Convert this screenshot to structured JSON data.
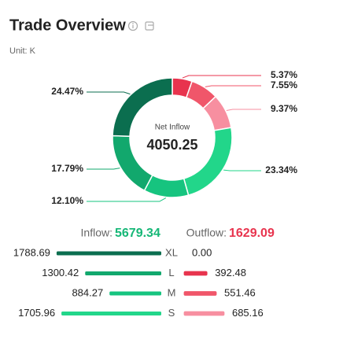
{
  "header": {
    "title": "Trade Overview",
    "unit": "Unit: K"
  },
  "chart_data": [
    {
      "type": "donut",
      "values": [
        5.37,
        7.55,
        9.37,
        23.34,
        12.1,
        17.79,
        24.47
      ],
      "value_labels": [
        "5.37%",
        "7.55%",
        "9.37%",
        "23.34%",
        "12.10%",
        "17.79%",
        "24.47%"
      ],
      "colors": [
        "#e8344e",
        "#f0566a",
        "#f78fa0",
        "#22d68a",
        "#16c47f",
        "#12a86d",
        "#0b6e4f"
      ],
      "center_label": "Net Inflow",
      "center_value": 4050.25
    },
    {
      "type": "paired-bar",
      "categories": [
        "XL",
        "L",
        "M",
        "S"
      ],
      "series": [
        {
          "name": "Inflow:",
          "total": 5679.34,
          "color": "#16b777",
          "colors": [
            "#0b6e4f",
            "#12a86d",
            "#16c47f",
            "#22d68a"
          ],
          "values": [
            1788.69,
            1300.42,
            884.27,
            1705.96
          ]
        },
        {
          "name": "Outflow:",
          "total": 1629.09,
          "color": "#e8344e",
          "colors": [
            "#c8c8c8",
            "#e8344e",
            "#f0566a",
            "#f78fa0"
          ],
          "values": [
            0,
            392.48,
            551.46,
            685.16
          ],
          "value_labels": [
            "0.00",
            "392.48",
            "551.46",
            "685.16"
          ]
        }
      ]
    }
  ]
}
